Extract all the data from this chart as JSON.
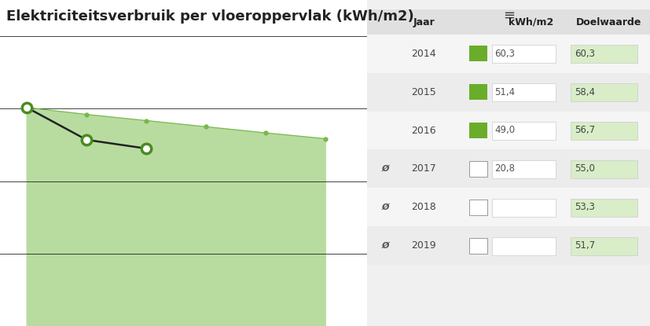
{
  "title": "Elektriciteitsverbruik per vloeroppervlak (kWh/m2)",
  "ylabel": "kWh / m2",
  "years": [
    2014,
    2015,
    2016,
    2017,
    2018,
    2019
  ],
  "actual_years": [
    2014,
    2015,
    2016
  ],
  "actual_values": [
    60.3,
    51.4,
    49.0
  ],
  "target_values": [
    60.3,
    58.4,
    56.7,
    55.0,
    53.3,
    51.7
  ],
  "ylim": [
    0,
    90
  ],
  "yticks": [
    0,
    20,
    40,
    60,
    80
  ],
  "bg_color": "#f0f0f0",
  "chart_panel_color": "#ffffff",
  "area_color": "#b8dca0",
  "line_color": "#5a9e30",
  "actual_line_color": "#222222",
  "marker_face": "#ffffff",
  "marker_edge": "#4a8c20",
  "target_dot_color": "#78b84a",
  "grid_color": "#222222",
  "table_header_bg": "#e0e0e0",
  "table_row_bg1": "#f5f5f5",
  "table_row_bg2": "#ebebeb",
  "table_target_color": "#d8edc8",
  "green_box_color": "#6aad2a",
  "table_years": [
    "2014",
    "2015",
    "2016",
    "2017",
    "2018",
    "2019"
  ],
  "table_kwh": [
    "60,3",
    "51,4",
    "49,0",
    "20,8",
    "",
    ""
  ],
  "table_doelwaarde": [
    "60,3",
    "58,4",
    "56,7",
    "55,0",
    "53,3",
    "51,7"
  ],
  "table_is_partial": [
    false,
    false,
    false,
    true,
    true,
    true
  ]
}
